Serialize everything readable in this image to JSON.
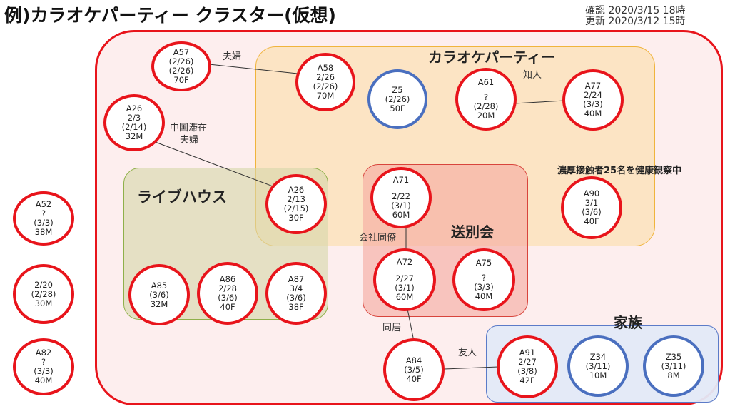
{
  "title": "例)カラオケパーティー クラスター(仮想)",
  "confirmed_text": "確認 2020/3/15 18時",
  "updated_text": "更新 2020/3/12 15時",
  "colors": {
    "infected_border": "#e8141b",
    "other_border": "#4a6fbf",
    "outer_region": "#fdeeee",
    "karaoke_region": "#fbe7c9",
    "livehouse_region": "#e4e2c4",
    "farewell_region": "#f8c9c4",
    "family_region": "#e7ebf6"
  },
  "regions": {
    "karaoke": "カラオケパーティー",
    "livehouse": "ライブハウス",
    "farewell": "送別会",
    "family": "家族"
  },
  "note": "濃厚接触者25名を健康観察中",
  "nodes": [
    {
      "id": "A57",
      "lines": [
        "A57",
        "(2/26)",
        "(2/26)",
        "70F"
      ]
    },
    {
      "id": "A58",
      "lines": [
        "A58",
        "2/26",
        "(2/26)",
        "70M"
      ]
    },
    {
      "id": "Z5",
      "lines": [
        "Z5",
        "(2/26)",
        "50F"
      ]
    },
    {
      "id": "A61",
      "lines": [
        "A61",
        "?",
        "(2/28)",
        "20M"
      ]
    },
    {
      "id": "A77",
      "lines": [
        "A77",
        "2/24",
        "(3/3)",
        "40M"
      ]
    },
    {
      "id": "A26a",
      "lines": [
        "A26",
        "2/3",
        "(2/14)",
        "32M"
      ]
    },
    {
      "id": "A26b",
      "lines": [
        "A26",
        "2/13",
        "(2/15)",
        "30F"
      ]
    },
    {
      "id": "A71",
      "lines": [
        "A71",
        "2/22",
        "(3/1)",
        "60M"
      ]
    },
    {
      "id": "A90",
      "lines": [
        "A90",
        "3/1",
        "(3/6)",
        "40F"
      ]
    },
    {
      "id": "A52",
      "lines": [
        "A52",
        "?",
        "(3/3)",
        "38M"
      ]
    },
    {
      "id": "U1",
      "lines": [
        "2/20",
        "(2/28)",
        "30M"
      ]
    },
    {
      "id": "A82",
      "lines": [
        "A82",
        "?",
        "(3/3)",
        "40M"
      ]
    },
    {
      "id": "A85",
      "lines": [
        "A85",
        "(3/6)",
        "32M"
      ]
    },
    {
      "id": "A86",
      "lines": [
        "A86",
        "2/28",
        "(3/6)",
        "40F"
      ]
    },
    {
      "id": "A87",
      "lines": [
        "A87",
        "3/4",
        "(3/6)",
        "38F"
      ]
    },
    {
      "id": "A72",
      "lines": [
        "A72",
        "2/27",
        "(3/1)",
        "60M"
      ]
    },
    {
      "id": "A75",
      "lines": [
        "A75",
        "?",
        "(3/3)",
        "40M"
      ]
    },
    {
      "id": "A84",
      "lines": [
        "A84",
        "(3/5)",
        "40F"
      ]
    },
    {
      "id": "A91",
      "lines": [
        "A91",
        "2/27",
        "(3/8)",
        "42F"
      ]
    },
    {
      "id": "Z34",
      "lines": [
        "Z34",
        "(3/11)",
        "10M"
      ]
    },
    {
      "id": "Z35",
      "lines": [
        "Z35",
        "(3/11)",
        "8M"
      ]
    }
  ],
  "relations": {
    "couple": "夫婦",
    "china_couple": [
      "中国滞在",
      "夫婦"
    ],
    "acquaintance": "知人",
    "coworker": "会社同僚",
    "cohabitant": "同居",
    "friend": "友人"
  }
}
